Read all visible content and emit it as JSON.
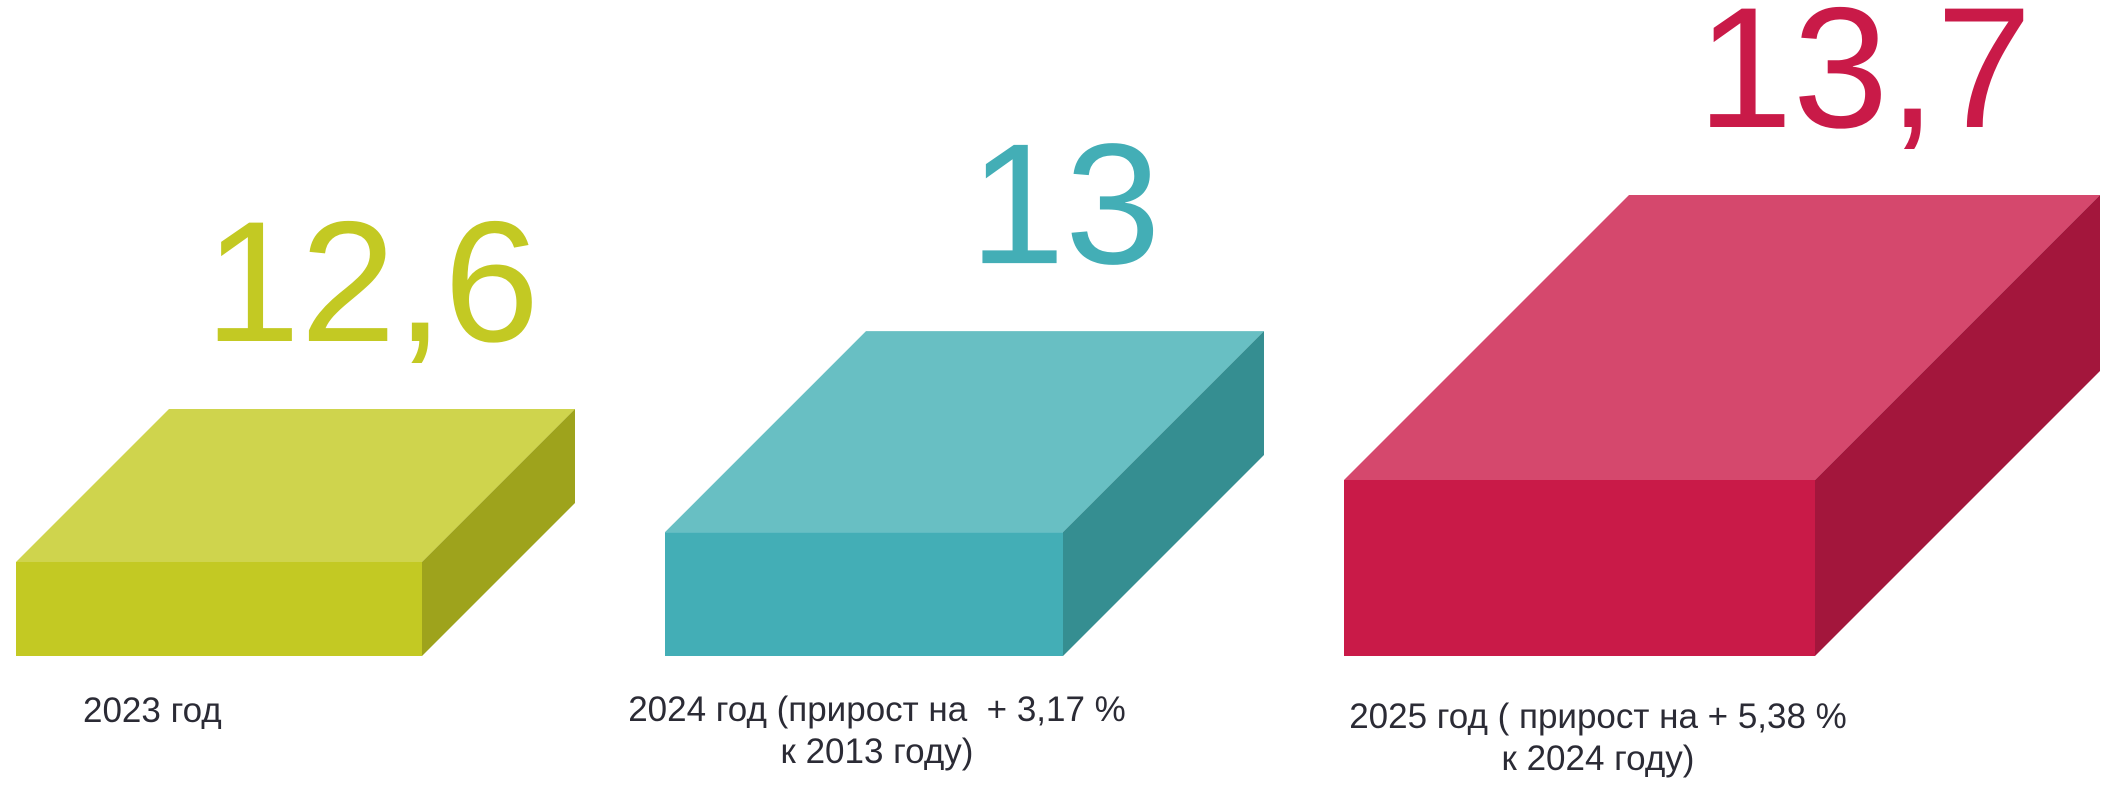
{
  "chart_data": {
    "type": "bar3d",
    "categories": [
      [
        "2023 год"
      ],
      [
        "2024 год (прирост на  + 3,17 %",
        "к 2013 году)"
      ],
      [
        "2025 год ( прирост на + 5,38 %",
        "к 2024 году)"
      ]
    ],
    "values": [
      12.6,
      13,
      13.7
    ],
    "value_labels": [
      "12,6",
      "13",
      "13,7"
    ],
    "colors": [
      {
        "front": "#c3c923",
        "top": "#cfd44d",
        "side": "#9ea31c"
      },
      {
        "front": "#43aeb6",
        "top": "#68bfc3",
        "side": "#358e91"
      },
      {
        "front": "#c91a48",
        "top": "#d5486d",
        "side": "#a3163c"
      }
    ]
  }
}
